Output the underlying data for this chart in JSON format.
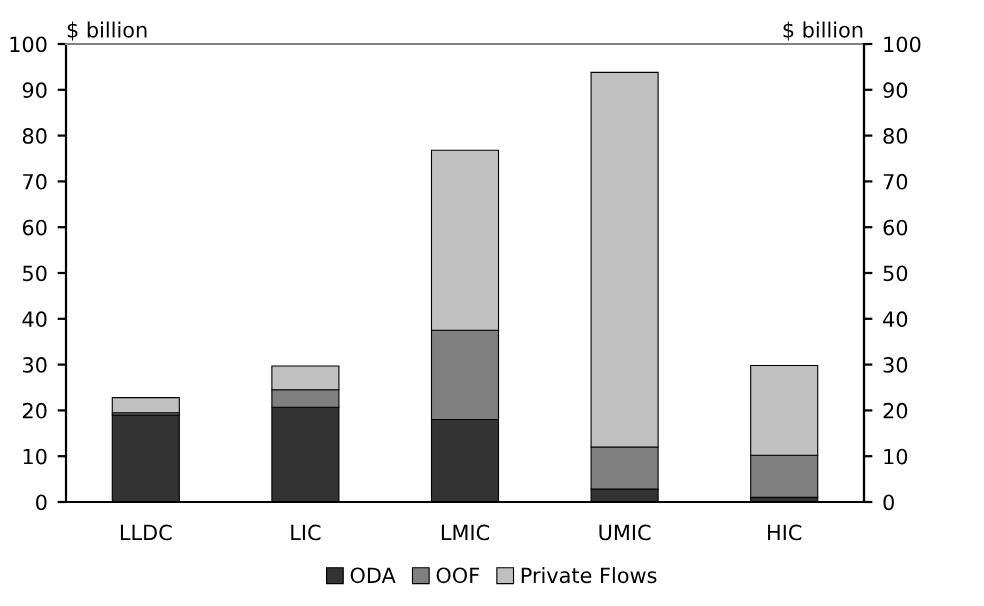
{
  "chart_data": {
    "type": "bar",
    "stacked": true,
    "ylabel": "$ billion",
    "y2label": "$ billion",
    "categories": [
      "LLDC",
      "LIC",
      "LMIC",
      "UMIC",
      "HIC"
    ],
    "series": [
      {
        "name": "ODA",
        "color": "#333333",
        "values": [
          19,
          20.7,
          18,
          2.8,
          1
        ]
      },
      {
        "name": "OOF",
        "color": "#808080",
        "values": [
          0.5,
          3.8,
          19.5,
          9.2,
          9.2
        ]
      },
      {
        "name": "Private Flows",
        "color": "#c0c0c0",
        "values": [
          3.3,
          5.2,
          39.3,
          81.8,
          19.6
        ]
      }
    ],
    "ylim": [
      0,
      100
    ],
    "yticks": [
      0,
      10,
      20,
      30,
      40,
      50,
      60,
      70,
      80,
      90,
      100
    ],
    "y2lim": [
      0,
      100
    ],
    "y2ticks": [
      0,
      10,
      20,
      30,
      40,
      50,
      60,
      70,
      80,
      90,
      100
    ],
    "grid": false,
    "legend": "bottom"
  }
}
